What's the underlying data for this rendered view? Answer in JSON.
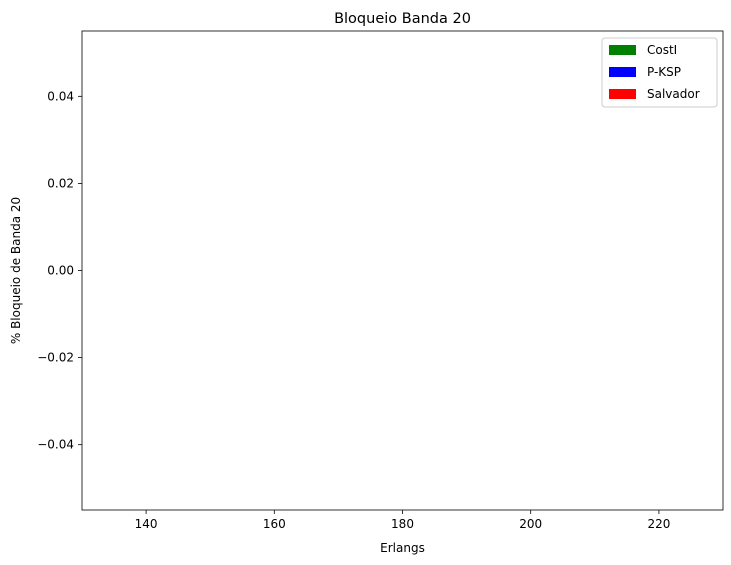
{
  "chart_data": {
    "type": "bar",
    "title": "Bloqueio Banda 20",
    "xlabel": "Erlangs",
    "ylabel": "% Bloqueio de Banda 20",
    "xlim": [
      130,
      230
    ],
    "ylim": [
      -0.055,
      0.055
    ],
    "xticks": [
      140,
      160,
      180,
      200,
      220
    ],
    "yticks": [
      -0.04,
      -0.02,
      0.0,
      0.02,
      0.04
    ],
    "ytick_labels": [
      "−0.04",
      "−0.02",
      "0.00",
      "0.02",
      "0.04"
    ],
    "grid": false,
    "legend_position": "top-right",
    "series": [
      {
        "name": "CostI",
        "color": "#008000",
        "values": []
      },
      {
        "name": "P-KSP",
        "color": "#0000ff",
        "values": []
      },
      {
        "name": "Salvador",
        "color": "#ff0000",
        "values": []
      }
    ]
  }
}
